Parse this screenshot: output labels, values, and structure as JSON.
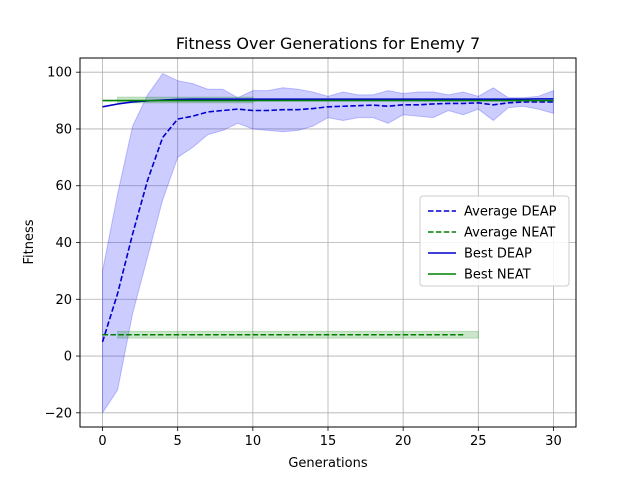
{
  "chart_data": {
    "type": "line",
    "title": "Fitness Over Generations for Enemy 7",
    "xlabel": "Generations",
    "ylabel": "Fitness",
    "xlim": [
      -1.5,
      31.5
    ],
    "ylim": [
      -25,
      105
    ],
    "xticks": [
      0,
      5,
      10,
      15,
      20,
      25,
      30
    ],
    "yticks": [
      -20,
      0,
      20,
      40,
      60,
      80,
      100
    ],
    "grid": true,
    "legend_position": "center-right",
    "series": [
      {
        "name": "Average DEAP",
        "color": "#0000cc",
        "style": "dashed",
        "x": [
          0,
          1,
          2,
          3,
          4,
          5,
          6,
          7,
          8,
          9,
          10,
          11,
          12,
          13,
          14,
          15,
          16,
          17,
          18,
          19,
          20,
          21,
          22,
          23,
          24,
          25,
          26,
          27,
          28,
          29,
          30
        ],
        "y": [
          5,
          22,
          43,
          62,
          77,
          83.5,
          84.5,
          86,
          86.5,
          87,
          86.5,
          86.5,
          86.8,
          86.8,
          87.2,
          87.8,
          88,
          88.2,
          88.4,
          88,
          88.5,
          88.5,
          88.8,
          89,
          89,
          89.2,
          88.5,
          89.2,
          89.5,
          89.5,
          89.5
        ],
        "band": {
          "color": "#0000ff",
          "lower": [
            -20,
            -12,
            15,
            35,
            55,
            70,
            73.5,
            78,
            79.5,
            82,
            80,
            79.5,
            79,
            79.5,
            81,
            84,
            83,
            84,
            84,
            82,
            85,
            84.5,
            84,
            86.5,
            85,
            87,
            83,
            87.5,
            88,
            87,
            85.5
          ],
          "upper": [
            30,
            57,
            81,
            92,
            99.5,
            97,
            96,
            94,
            94,
            91,
            93.5,
            93.5,
            94.5,
            94,
            93,
            91.5,
            93,
            92,
            92,
            93.5,
            92.5,
            93,
            93,
            92,
            93,
            91.5,
            94.5,
            91,
            91,
            91.5,
            93.5
          ]
        }
      },
      {
        "name": "Average NEAT",
        "color": "#008000",
        "style": "dashed",
        "x": [
          0,
          1,
          2,
          3,
          4,
          5,
          6,
          7,
          8,
          9,
          10,
          11,
          12,
          13,
          14,
          15,
          16,
          17,
          18,
          19,
          20,
          21,
          22,
          23,
          24
        ],
        "y": [
          7.5,
          7.5,
          7.5,
          7.5,
          7.5,
          7.5,
          7.5,
          7.5,
          7.5,
          7.5,
          7.5,
          7.5,
          7.5,
          7.5,
          7.5,
          7.5,
          7.5,
          7.5,
          7.5,
          7.5,
          7.5,
          7.5,
          7.5,
          7.5,
          7.5
        ],
        "band": {
          "color": "#008000",
          "x": [
            1,
            25
          ],
          "lower": [
            6.3,
            6.3
          ],
          "upper": [
            8.7,
            8.7
          ]
        }
      },
      {
        "name": "Best DEAP",
        "color": "#0000cc",
        "style": "solid",
        "x": [
          0,
          1,
          2,
          3,
          4,
          5,
          6,
          7,
          8,
          9,
          10,
          11,
          12,
          13,
          14,
          15,
          16,
          17,
          18,
          19,
          20,
          21,
          22,
          23,
          24,
          25,
          26,
          27,
          28,
          29,
          30
        ],
        "y": [
          87.8,
          88.8,
          89.5,
          89.9,
          90.2,
          90.4,
          90.5,
          90.5,
          90.5,
          90.5,
          90.5,
          90.5,
          90.5,
          90.5,
          90.5,
          90.5,
          90.5,
          90.5,
          90.5,
          90.5,
          90.5,
          90.5,
          90.5,
          90.5,
          90.5,
          90.5,
          90.5,
          90.5,
          90.5,
          90.6,
          90.6
        ]
      },
      {
        "name": "Best NEAT",
        "color": "#008000",
        "style": "solid",
        "x": [
          0,
          1,
          2,
          3,
          4,
          5,
          6,
          7,
          8,
          9,
          10,
          11,
          12,
          13,
          14,
          15,
          16,
          17,
          18,
          19,
          20,
          21,
          22,
          23,
          24,
          25,
          26,
          27,
          28,
          29,
          30
        ],
        "y": [
          90,
          90,
          90,
          90,
          90,
          90,
          90,
          90,
          90,
          90,
          90,
          90,
          90,
          90,
          90,
          90,
          90,
          90,
          90,
          90,
          90,
          90,
          90,
          90,
          90,
          90,
          90,
          90,
          90,
          90,
          90
        ],
        "band": {
          "color": "#008000",
          "x": [
            1,
            10
          ],
          "lower": [
            89.2,
            89.2
          ],
          "upper": [
            91.2,
            91.2
          ]
        }
      }
    ]
  }
}
